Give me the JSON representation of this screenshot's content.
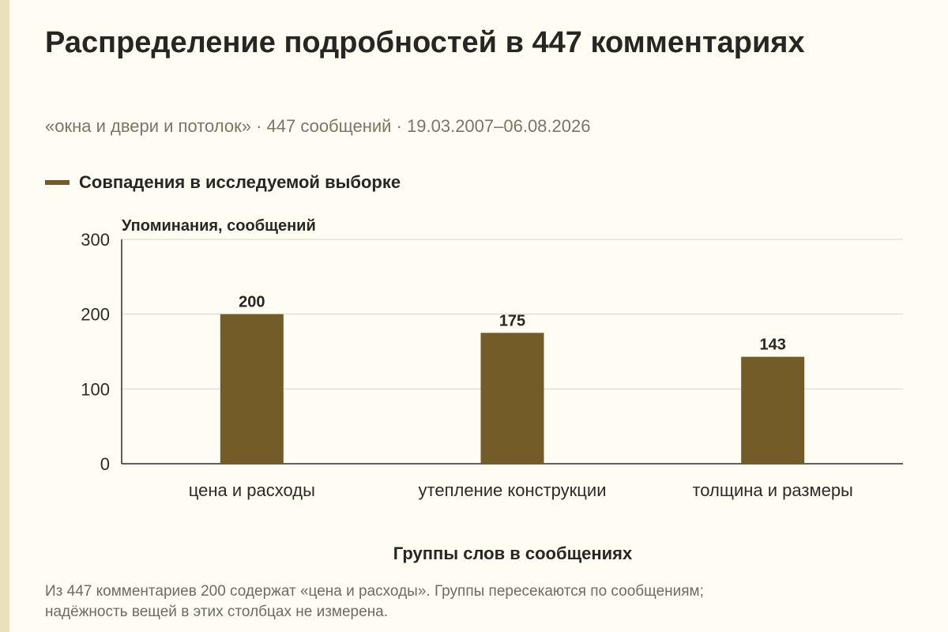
{
  "header": {
    "title": "Распределение подробностей в 447 комментариях",
    "subtitle": "«окна и двери и потолок» · 447 сообщений · 19.03.2007–06.08.2026"
  },
  "legend": {
    "label": "Совпадения в исследуемой выборке",
    "color": "#735c27"
  },
  "chart_data": {
    "type": "bar",
    "categories": [
      "цена и расходы",
      "утепление конструкции",
      "толщина и размеры"
    ],
    "series": [
      {
        "name": "Совпадения в исследуемой выборке",
        "values": [
          200,
          175,
          143
        ],
        "color": "#735c27"
      }
    ],
    "data_labels": [
      "200",
      "175",
      "143"
    ],
    "xlabel": "Группы слов в сообщениях",
    "ylabel": "Упоминания, сообщений",
    "ylim": [
      0,
      300
    ],
    "yticks": [
      0,
      100,
      200,
      300
    ],
    "grid": true,
    "legend_position": "top-left"
  },
  "footer": {
    "caption_line1": "Из 447 комментариев 200 содержат «цена и расходы». Группы пересекаются по сообщениям;",
    "caption_line2": "надёжность вещей в этих столбцах не измерена."
  }
}
